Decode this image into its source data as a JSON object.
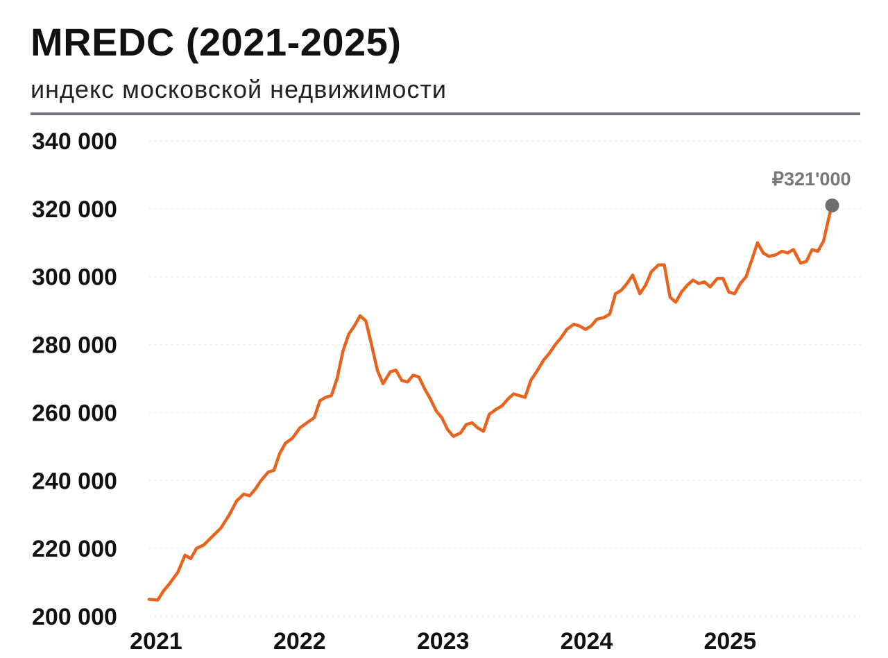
{
  "header": {
    "title": "MREDC (2021-2025)",
    "subtitle": "индекс московской недвижимости"
  },
  "colors": {
    "line": "#e8641e",
    "end_marker": "#6e6e6e",
    "rule": "#6f7480",
    "grid": "#e6e6e6"
  },
  "chart_data": {
    "type": "line",
    "title": "MREDC (2021-2025)",
    "subtitle": "индекс московской недвижимости",
    "xlabel": "",
    "ylabel": "",
    "ylim": [
      200000,
      340000
    ],
    "yticks": [
      200000,
      220000,
      240000,
      260000,
      280000,
      300000,
      320000,
      340000
    ],
    "ytick_labels": [
      "200 000",
      "220 000",
      "240 000",
      "260 000",
      "280 000",
      "300 000",
      "320 000",
      "340 000"
    ],
    "xlim": [
      2021.0,
      2025.98
    ],
    "xticks": [
      2021,
      2022,
      2023,
      2024,
      2025
    ],
    "xtick_labels": [
      "2021",
      "2022",
      "2023",
      "2024",
      "2025"
    ],
    "grid": "horizontal dotted",
    "end_label": "₽321'000",
    "series": [
      {
        "values": [
          [
            2021.0,
            205000
          ],
          [
            2021.06,
            204800
          ],
          [
            2021.1,
            207500
          ],
          [
            2021.14,
            209500
          ],
          [
            2021.2,
            213000
          ],
          [
            2021.25,
            218000
          ],
          [
            2021.29,
            217000
          ],
          [
            2021.33,
            220000
          ],
          [
            2021.38,
            221000
          ],
          [
            2021.44,
            223500
          ],
          [
            2021.5,
            226000
          ],
          [
            2021.56,
            230000
          ],
          [
            2021.61,
            234000
          ],
          [
            2021.66,
            236000
          ],
          [
            2021.7,
            235500
          ],
          [
            2021.74,
            237500
          ],
          [
            2021.78,
            240000
          ],
          [
            2021.83,
            242500
          ],
          [
            2021.87,
            243000
          ],
          [
            2021.91,
            248000
          ],
          [
            2021.95,
            251000
          ],
          [
            2022.0,
            252500
          ],
          [
            2022.05,
            255500
          ],
          [
            2022.1,
            257000
          ],
          [
            2022.15,
            258500
          ],
          [
            2022.19,
            263500
          ],
          [
            2022.23,
            264500
          ],
          [
            2022.27,
            265000
          ],
          [
            2022.31,
            270000
          ],
          [
            2022.35,
            278000
          ],
          [
            2022.39,
            283000
          ],
          [
            2022.43,
            285500
          ],
          [
            2022.47,
            288500
          ],
          [
            2022.51,
            287000
          ],
          [
            2022.55,
            280000
          ],
          [
            2022.59,
            272500
          ],
          [
            2022.63,
            268500
          ],
          [
            2022.68,
            272000
          ],
          [
            2022.72,
            272500
          ],
          [
            2022.76,
            269500
          ],
          [
            2022.8,
            269000
          ],
          [
            2022.84,
            271000
          ],
          [
            2022.88,
            270500
          ],
          [
            2022.92,
            267000
          ],
          [
            2022.96,
            264000
          ],
          [
            2023.0,
            260500
          ],
          [
            2023.04,
            258500
          ],
          [
            2023.08,
            255000
          ],
          [
            2023.12,
            253000
          ],
          [
            2023.17,
            254000
          ],
          [
            2023.21,
            256500
          ],
          [
            2023.25,
            257000
          ],
          [
            2023.29,
            255500
          ],
          [
            2023.33,
            254500
          ],
          [
            2023.37,
            259500
          ],
          [
            2023.42,
            261000
          ],
          [
            2023.46,
            262000
          ],
          [
            2023.5,
            264000
          ],
          [
            2023.54,
            265500
          ],
          [
            2023.58,
            265000
          ],
          [
            2023.62,
            264500
          ],
          [
            2023.66,
            269500
          ],
          [
            2023.7,
            272000
          ],
          [
            2023.75,
            275500
          ],
          [
            2023.79,
            277500
          ],
          [
            2023.83,
            280000
          ],
          [
            2023.87,
            282000
          ],
          [
            2023.91,
            284500
          ],
          [
            2023.96,
            286000
          ],
          [
            2024.0,
            285500
          ],
          [
            2024.04,
            284500
          ],
          [
            2024.08,
            285500
          ],
          [
            2024.12,
            287500
          ],
          [
            2024.17,
            288000
          ],
          [
            2024.21,
            289000
          ],
          [
            2024.25,
            295000
          ],
          [
            2024.29,
            296000
          ],
          [
            2024.33,
            298000
          ],
          [
            2024.37,
            300500
          ],
          [
            2024.42,
            295000
          ],
          [
            2024.46,
            297500
          ],
          [
            2024.5,
            301500
          ],
          [
            2024.55,
            303500
          ],
          [
            2024.59,
            303500
          ],
          [
            2024.63,
            294000
          ],
          [
            2024.67,
            292500
          ],
          [
            2024.71,
            295500
          ],
          [
            2024.75,
            297500
          ],
          [
            2024.79,
            299000
          ],
          [
            2024.83,
            298000
          ],
          [
            2024.87,
            298500
          ],
          [
            2024.91,
            297000
          ],
          [
            2024.96,
            299500
          ],
          [
            2025.0,
            299500
          ],
          [
            2025.04,
            295500
          ],
          [
            2025.08,
            295000
          ],
          [
            2025.12,
            298000
          ],
          [
            2025.16,
            300000
          ],
          [
            2025.2,
            305000
          ],
          [
            2025.24,
            310000
          ],
          [
            2025.28,
            307000
          ],
          [
            2025.32,
            306000
          ],
          [
            2025.37,
            306500
          ],
          [
            2025.41,
            307500
          ],
          [
            2025.45,
            307000
          ],
          [
            2025.49,
            308000
          ],
          [
            2025.54,
            304000
          ],
          [
            2025.58,
            304500
          ],
          [
            2025.62,
            308000
          ],
          [
            2025.66,
            307500
          ],
          [
            2025.7,
            310500
          ],
          [
            2025.74,
            318000
          ],
          [
            2025.76,
            321000
          ]
        ]
      }
    ]
  }
}
